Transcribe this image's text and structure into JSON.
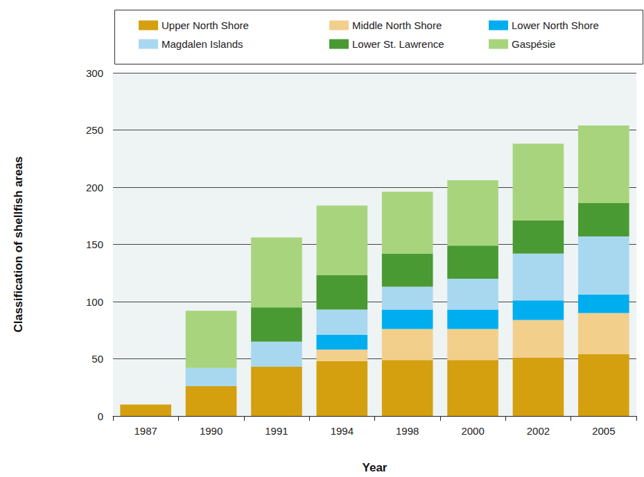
{
  "chart_data": {
    "type": "bar",
    "stacked": true,
    "x_label": "Year",
    "y_label": "Classification of shellfish areas",
    "categories": [
      "1987",
      "1990",
      "1991",
      "1994",
      "1998",
      "2000",
      "2002",
      "2005"
    ],
    "series": [
      {
        "name": "Upper North Shore",
        "color": "#d4a00f",
        "values": [
          10,
          26,
          43,
          48,
          49,
          49,
          51,
          54
        ]
      },
      {
        "name": "Middle North Shore",
        "color": "#f3cf8c",
        "values": [
          0,
          0,
          0,
          10,
          27,
          27,
          33,
          36
        ]
      },
      {
        "name": "Lower North Shore",
        "color": "#00aeef",
        "values": [
          0,
          0,
          0,
          13,
          17,
          17,
          17,
          16
        ]
      },
      {
        "name": "Magdalen Islands",
        "color": "#a8d8f0",
        "values": [
          0,
          16,
          22,
          22,
          20,
          27,
          41,
          51
        ]
      },
      {
        "name": "Lower St. Lawrence",
        "color": "#4a9a33",
        "values": [
          0,
          0,
          30,
          30,
          29,
          29,
          29,
          29
        ]
      },
      {
        "name": "Gaspésie",
        "color": "#a8d47e",
        "values": [
          0,
          50,
          61,
          61,
          54,
          57,
          67,
          68
        ]
      }
    ],
    "ylim": [
      0,
      300
    ],
    "yticks": [
      0,
      50,
      100,
      150,
      200,
      250,
      300
    ],
    "grid": true,
    "legend": "top"
  }
}
